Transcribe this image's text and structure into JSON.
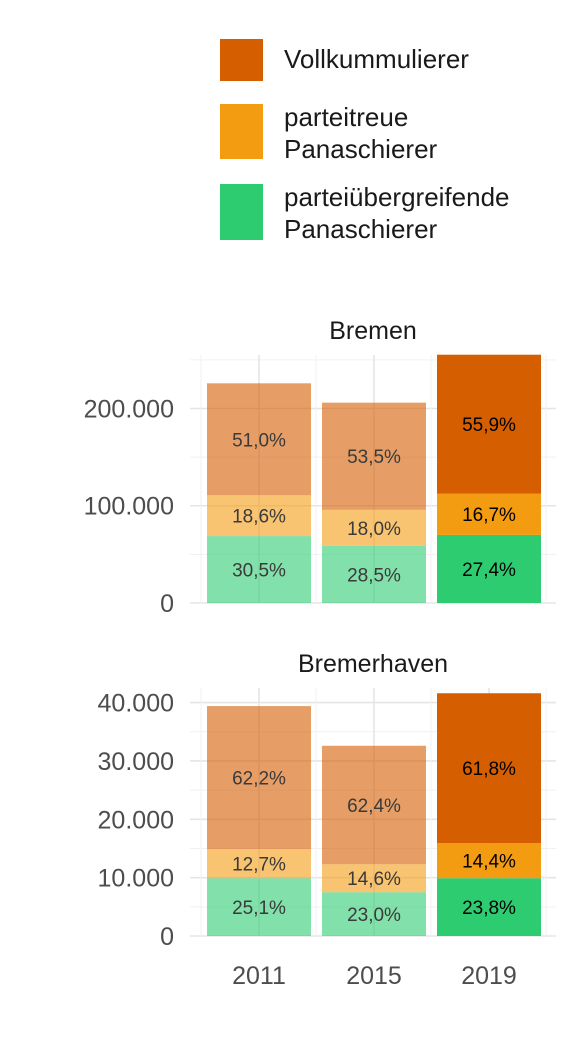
{
  "legend": {
    "items": [
      {
        "label": "Vollkummulierer",
        "color": "#D55E00"
      },
      {
        "label": "parteitreue\nPanaschierer",
        "color": "#F39C12"
      },
      {
        "label": "parteiübergreifende\nPanaschierer",
        "color": "#2ECC71"
      }
    ]
  },
  "chart_data": [
    {
      "type": "bar",
      "stacked": true,
      "title": "Bremen",
      "categories": [
        "2011",
        "2015",
        "2019"
      ],
      "highlight_category": "2019",
      "ylim": [
        0,
        255000
      ],
      "yticks": [
        0,
        100000,
        200000
      ],
      "ytick_labels": [
        "0",
        "100.000",
        "200.000"
      ],
      "grid": true,
      "series": [
        {
          "name": "parteiübergreifende Panaschierer",
          "values": [
            68800,
            58700,
            70000
          ],
          "labels": [
            "30,5%",
            "28,5%",
            "27,4%"
          ]
        },
        {
          "name": "parteitreue Panaschierer",
          "values": [
            42000,
            37100,
            42600
          ],
          "labels": [
            "18,6%",
            "18,0%",
            "16,7%"
          ]
        },
        {
          "name": "Vollkummulierer",
          "values": [
            115100,
            110200,
            142700
          ],
          "labels": [
            "51,0%",
            "53,5%",
            "55,9%"
          ]
        }
      ]
    },
    {
      "type": "bar",
      "stacked": true,
      "title": "Bremerhaven",
      "categories": [
        "2011",
        "2015",
        "2019"
      ],
      "highlight_category": "2019",
      "ylim": [
        0,
        42500
      ],
      "yticks": [
        0,
        10000,
        20000,
        30000,
        40000
      ],
      "ytick_labels": [
        "0",
        "10.000",
        "20.000",
        "30.000",
        "40.000"
      ],
      "grid": true,
      "series": [
        {
          "name": "parteiübergreifende Panaschierer",
          "values": [
            9900,
            7500,
            9900
          ],
          "labels": [
            "25,1%",
            "23,0%",
            "23,8%"
          ]
        },
        {
          "name": "parteitreue Panaschierer",
          "values": [
            5000,
            4800,
            6000
          ],
          "labels": [
            "12,7%",
            "14,6%",
            "14,4%"
          ]
        },
        {
          "name": "Vollkummulierer",
          "values": [
            24500,
            20300,
            25700
          ],
          "labels": [
            "62,2%",
            "62,4%",
            "61,8%"
          ]
        }
      ]
    }
  ]
}
